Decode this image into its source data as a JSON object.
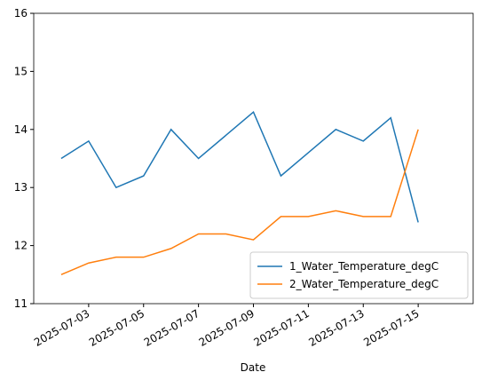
{
  "chart_data": {
    "type": "line",
    "xlabel": "Date",
    "x": [
      "2025-07-02",
      "2025-07-03",
      "2025-07-04",
      "2025-07-05",
      "2025-07-06",
      "2025-07-07",
      "2025-07-08",
      "2025-07-09",
      "2025-07-10",
      "2025-07-11",
      "2025-07-12",
      "2025-07-13",
      "2025-07-14",
      "2025-07-15"
    ],
    "series": [
      {
        "name": "1_Water_Temperature_degC",
        "color": "#1f77b4",
        "values": [
          13.5,
          13.8,
          13.0,
          13.2,
          14.0,
          13.5,
          13.9,
          14.3,
          13.2,
          13.6,
          14.0,
          13.8,
          14.2,
          12.4
        ]
      },
      {
        "name": "2_Water_Temperature_degC",
        "color": "#ff7f0e",
        "values": [
          11.5,
          11.7,
          11.8,
          11.8,
          11.95,
          12.2,
          12.2,
          12.1,
          12.5,
          12.5,
          12.6,
          12.5,
          12.5,
          14.0
        ]
      }
    ],
    "xlim": [
      "2025-07-01",
      "2025-07-17"
    ],
    "xticks": [
      "2025-07-03",
      "2025-07-05",
      "2025-07-07",
      "2025-07-09",
      "2025-07-11",
      "2025-07-13",
      "2025-07-15"
    ],
    "ylim": [
      11,
      16
    ],
    "yticks": [
      11,
      12,
      13,
      14,
      15,
      16
    ],
    "legend": "lower right"
  }
}
